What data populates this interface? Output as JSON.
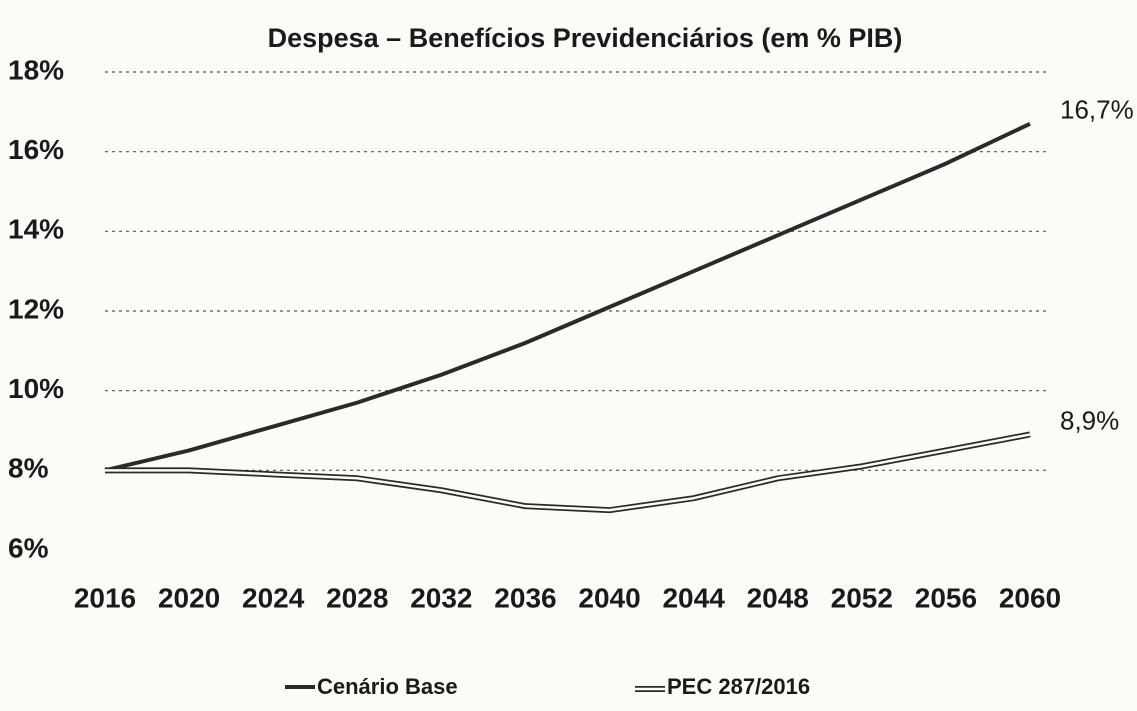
{
  "chart_data": {
    "type": "line",
    "title": "Despesa – Benefícios Previdenciários (em % PIB)",
    "x": [
      2016,
      2020,
      2024,
      2028,
      2032,
      2036,
      2040,
      2044,
      2048,
      2052,
      2056,
      2060
    ],
    "xlim": [
      2016,
      2060
    ],
    "series": [
      {
        "name": "Cenário Base",
        "color": "#2a2a2a",
        "line_style": "solid",
        "values": [
          8.0,
          8.5,
          9.1,
          9.7,
          10.4,
          11.2,
          12.1,
          13.0,
          13.9,
          14.8,
          15.7,
          16.7
        ],
        "value_labels": [
          null,
          null,
          null,
          null,
          null,
          null,
          null,
          null,
          null,
          null,
          null,
          "16,7%"
        ]
      },
      {
        "name": "PEC 287/2016",
        "color": "#2a2a2a",
        "line_style": "double",
        "values": [
          8.0,
          8.0,
          7.9,
          7.8,
          7.5,
          7.1,
          7.0,
          7.3,
          7.8,
          8.1,
          8.5,
          8.9
        ],
        "value_labels": [
          null,
          null,
          null,
          null,
          null,
          null,
          null,
          null,
          null,
          null,
          null,
          "8,9%"
        ]
      }
    ],
    "ylim": [
      6,
      18
    ],
    "yticks": [
      {
        "value": 6,
        "label": "6%"
      },
      {
        "value": 8,
        "label": "8%"
      },
      {
        "value": 10,
        "label": "10%"
      },
      {
        "value": 12,
        "label": "12%"
      },
      {
        "value": 14,
        "label": "14%"
      },
      {
        "value": 16,
        "label": "16%"
      },
      {
        "value": 18,
        "label": "18%"
      }
    ],
    "grid": true,
    "legend": "bottom"
  }
}
